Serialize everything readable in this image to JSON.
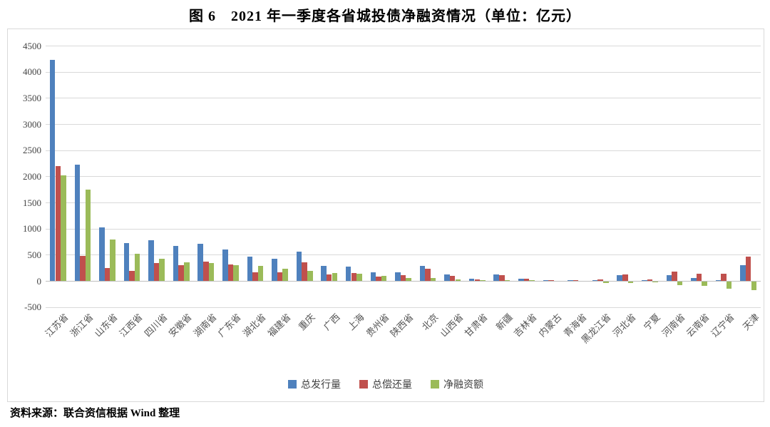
{
  "title": "图 6　2021 年一季度各省城投债净融资情况（单位：亿元）",
  "source": "资料来源：联合资信根据 Wind 整理",
  "chart_data": {
    "type": "bar",
    "title": "图 6　2021 年一季度各省城投债净融资情况（单位：亿元）",
    "unit": "亿元",
    "categories": [
      "江苏省",
      "浙江省",
      "山东省",
      "江西省",
      "四川省",
      "安徽省",
      "湖南省",
      "广东省",
      "湖北省",
      "福建省",
      "重庆",
      "广西",
      "上海",
      "贵州省",
      "陕西省",
      "北京",
      "山西省",
      "甘肃省",
      "新疆",
      "吉林省",
      "内蒙古",
      "青海省",
      "黑龙江省",
      "河北省",
      "宁夏",
      "河南省",
      "云南省",
      "辽宁省",
      "天津"
    ],
    "series": [
      {
        "name": "总发行量",
        "key": "issuance",
        "color": "#4F81BD",
        "values": [
          4230,
          2225,
          1030,
          720,
          775,
          670,
          715,
          600,
          465,
          420,
          555,
          285,
          280,
          165,
          170,
          290,
          130,
          45,
          130,
          45,
          5,
          5,
          5,
          110,
          10,
          105,
          55,
          10,
          300
        ]
      },
      {
        "name": "总偿还量",
        "key": "repayment",
        "color": "#C0504D",
        "values": [
          2200,
          475,
          240,
          195,
          340,
          305,
          370,
          315,
          170,
          165,
          350,
          130,
          145,
          80,
          105,
          235,
          95,
          30,
          110,
          35,
          5,
          5,
          30,
          125,
          25,
          175,
          140,
          140,
          465
        ]
      },
      {
        "name": "净融资额",
        "key": "net-financing",
        "color": "#9BBB59",
        "values": [
          2020,
          1750,
          790,
          515,
          425,
          360,
          340,
          300,
          285,
          235,
          185,
          155,
          135,
          90,
          50,
          55,
          30,
          15,
          20,
          10,
          0,
          0,
          -25,
          -20,
          -15,
          -70,
          -85,
          -130,
          -165
        ]
      }
    ],
    "ylim": [
      -500,
      4500
    ],
    "ytick_step": 500,
    "yticks": [
      4500,
      4000,
      3500,
      3000,
      2500,
      2000,
      1500,
      1000,
      500,
      0,
      -500
    ],
    "grid": true,
    "legend_position": "bottom",
    "gridline_color": "#d9d9d9",
    "axis_color": "#bfbfbf"
  }
}
